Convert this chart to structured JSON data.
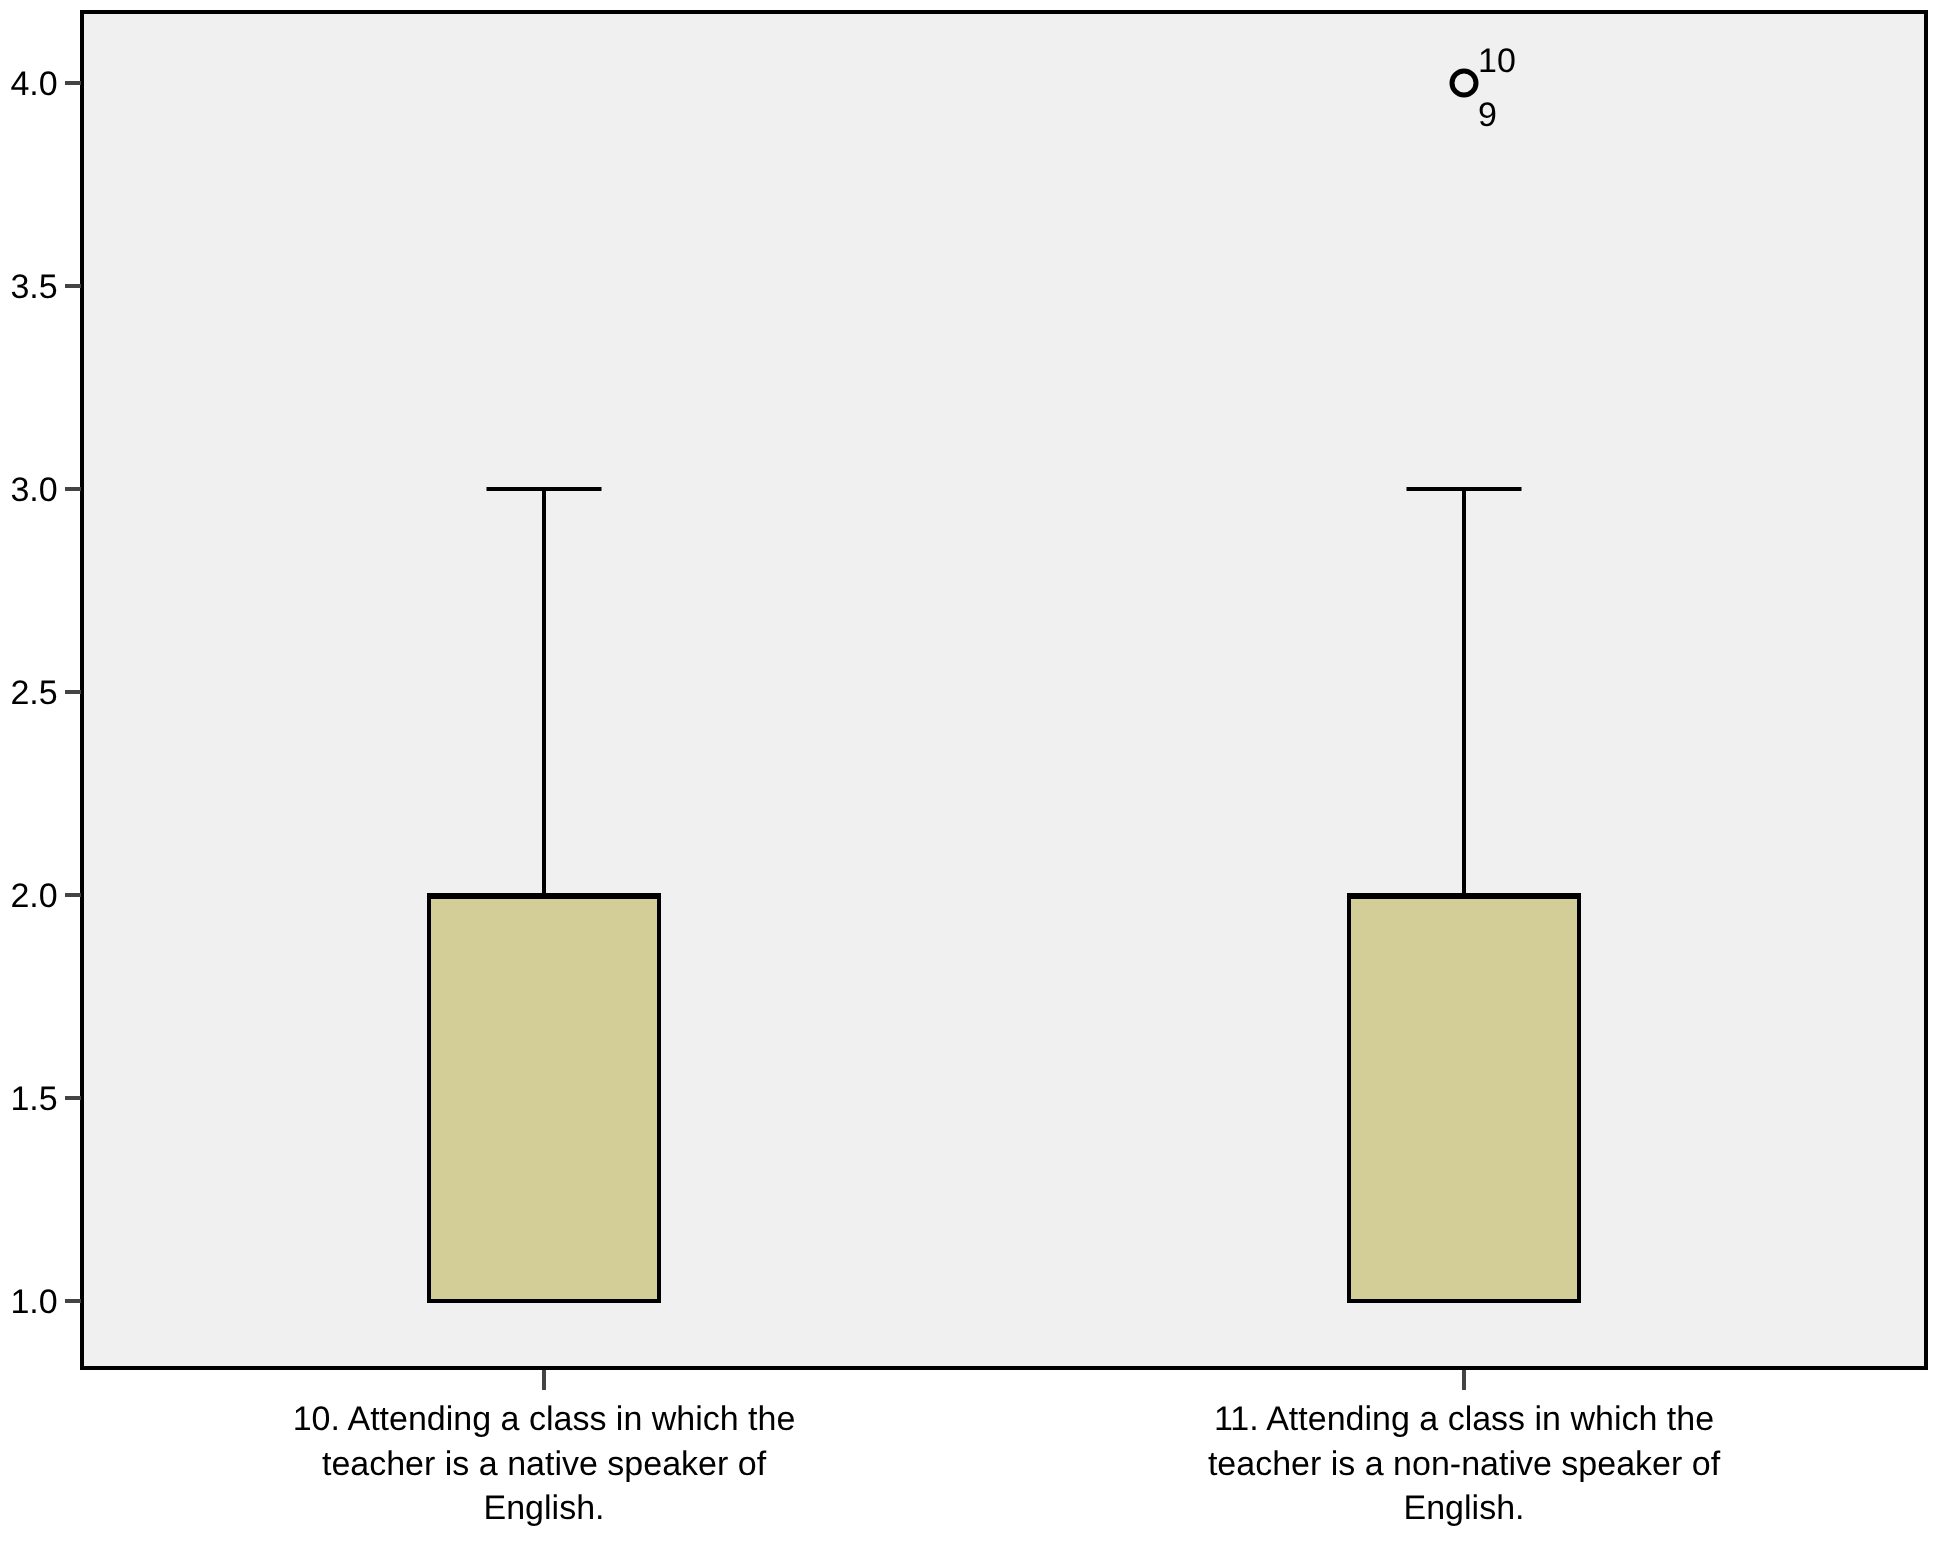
{
  "chart_data": {
    "type": "box",
    "categories": [
      "10. Attending a class in which the teacher is a native speaker of English.",
      "11. Attending a class in which the teacher is a non-native speaker of English."
    ],
    "boxes": [
      {
        "low": 1.0,
        "q1": 1.0,
        "median": 2.0,
        "q3": 2.0,
        "high": 3.0
      },
      {
        "low": 1.0,
        "q1": 1.0,
        "median": 2.0,
        "q3": 2.0,
        "high": 3.0,
        "outliers": [
          4.0
        ]
      }
    ],
    "color": "#d3ce98",
    "ylim": [
      0.84,
      4.17
    ],
    "yticks": [
      {
        "value": 1,
        "label": "1.0"
      },
      {
        "value": 1.5,
        "label": "1.5"
      },
      {
        "value": 2,
        "label": "2.0"
      },
      {
        "value": 2.5,
        "label": "2.5"
      },
      {
        "value": 3,
        "label": "3.0"
      },
      {
        "value": 3.5,
        "label": "3.5"
      },
      {
        "value": 4,
        "label": "4.0"
      }
    ],
    "grid": false,
    "annotations": [
      "10",
      "9"
    ]
  }
}
